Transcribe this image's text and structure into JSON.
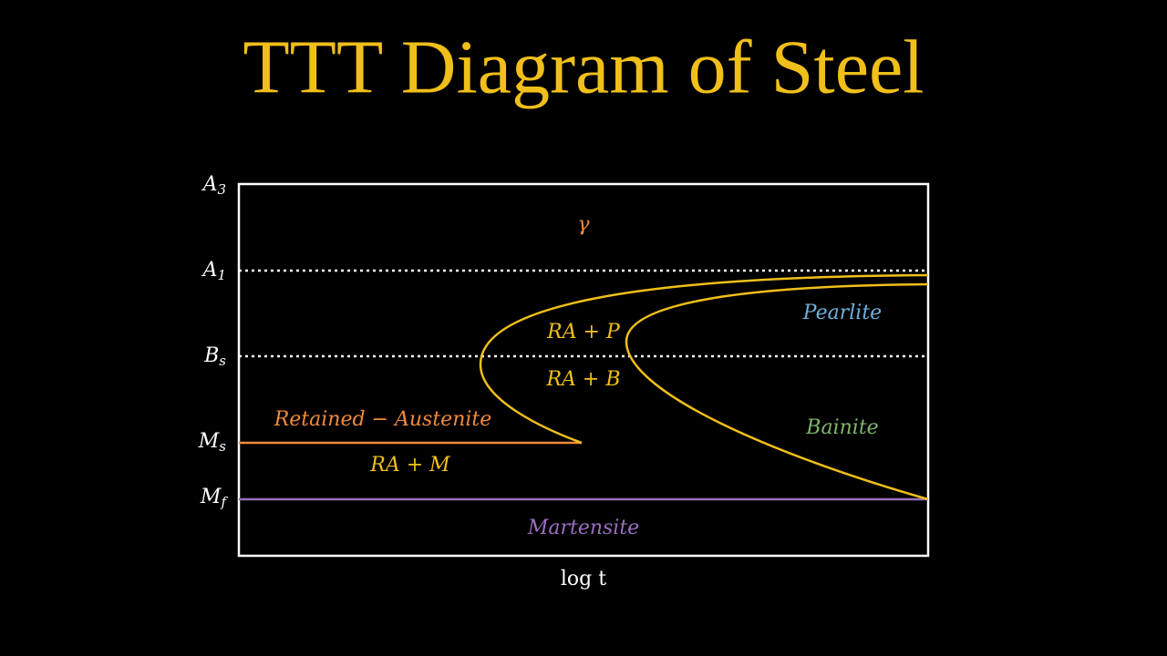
{
  "title": "TTT Diagram of Steel",
  "temperature_levels": [
    {
      "symbol": "A",
      "subscript": "3"
    },
    {
      "symbol": "A",
      "subscript": "1"
    },
    {
      "symbol": "B",
      "subscript": "s"
    },
    {
      "symbol": "M",
      "subscript": "s"
    },
    {
      "symbol": "M",
      "subscript": "f"
    }
  ],
  "x_axis_label": "log t",
  "regions": {
    "austenite": "γ",
    "ra_pearlite": "RA + P",
    "ra_bainite": "RA + B",
    "retained_austenite": "Retained − Austenite",
    "ra_martensite": "RA + M",
    "pearlite": "Pearlite",
    "bainite": "Bainite",
    "martensite": "Martensite"
  }
}
